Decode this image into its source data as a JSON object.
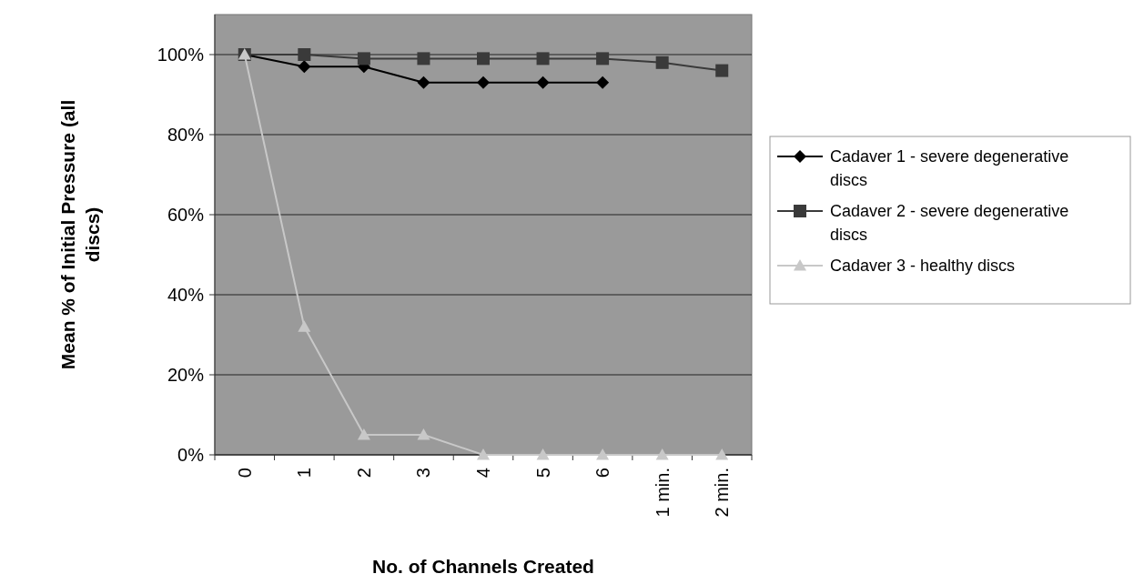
{
  "chart_data": {
    "type": "line",
    "xlabel": "No. of Channels Created",
    "ylabel": "Mean % of Initial Pressure (all discs)",
    "categories": [
      "0",
      "1",
      "2",
      "3",
      "4",
      "5",
      "6",
      "1 min.",
      "2 min."
    ],
    "series": [
      {
        "name": "Cadaver 1 - severe degenerative discs",
        "color": "#000000",
        "marker": "diamond",
        "values": [
          100,
          97,
          97,
          93,
          93,
          93,
          93,
          null,
          null
        ]
      },
      {
        "name": "Cadaver 2 - severe degenerative discs",
        "color": "#3a3a3a",
        "marker": "square",
        "values": [
          100,
          100,
          99,
          99,
          99,
          99,
          99,
          98,
          96
        ]
      },
      {
        "name": "Cadaver 3 - healthy discs",
        "color": "#c8c8c8",
        "marker": "triangle",
        "values": [
          100,
          32,
          5,
          5,
          0,
          0,
          0,
          0,
          0
        ]
      }
    ],
    "ylim": [
      0,
      110
    ],
    "yticks": [
      {
        "value": 0,
        "label": "0%"
      },
      {
        "value": 20,
        "label": "20%"
      },
      {
        "value": 40,
        "label": "40%"
      },
      {
        "value": 60,
        "label": "60%"
      },
      {
        "value": 80,
        "label": "80%"
      },
      {
        "value": 100,
        "label": "100%"
      }
    ],
    "grid": "y",
    "legend": "right"
  }
}
